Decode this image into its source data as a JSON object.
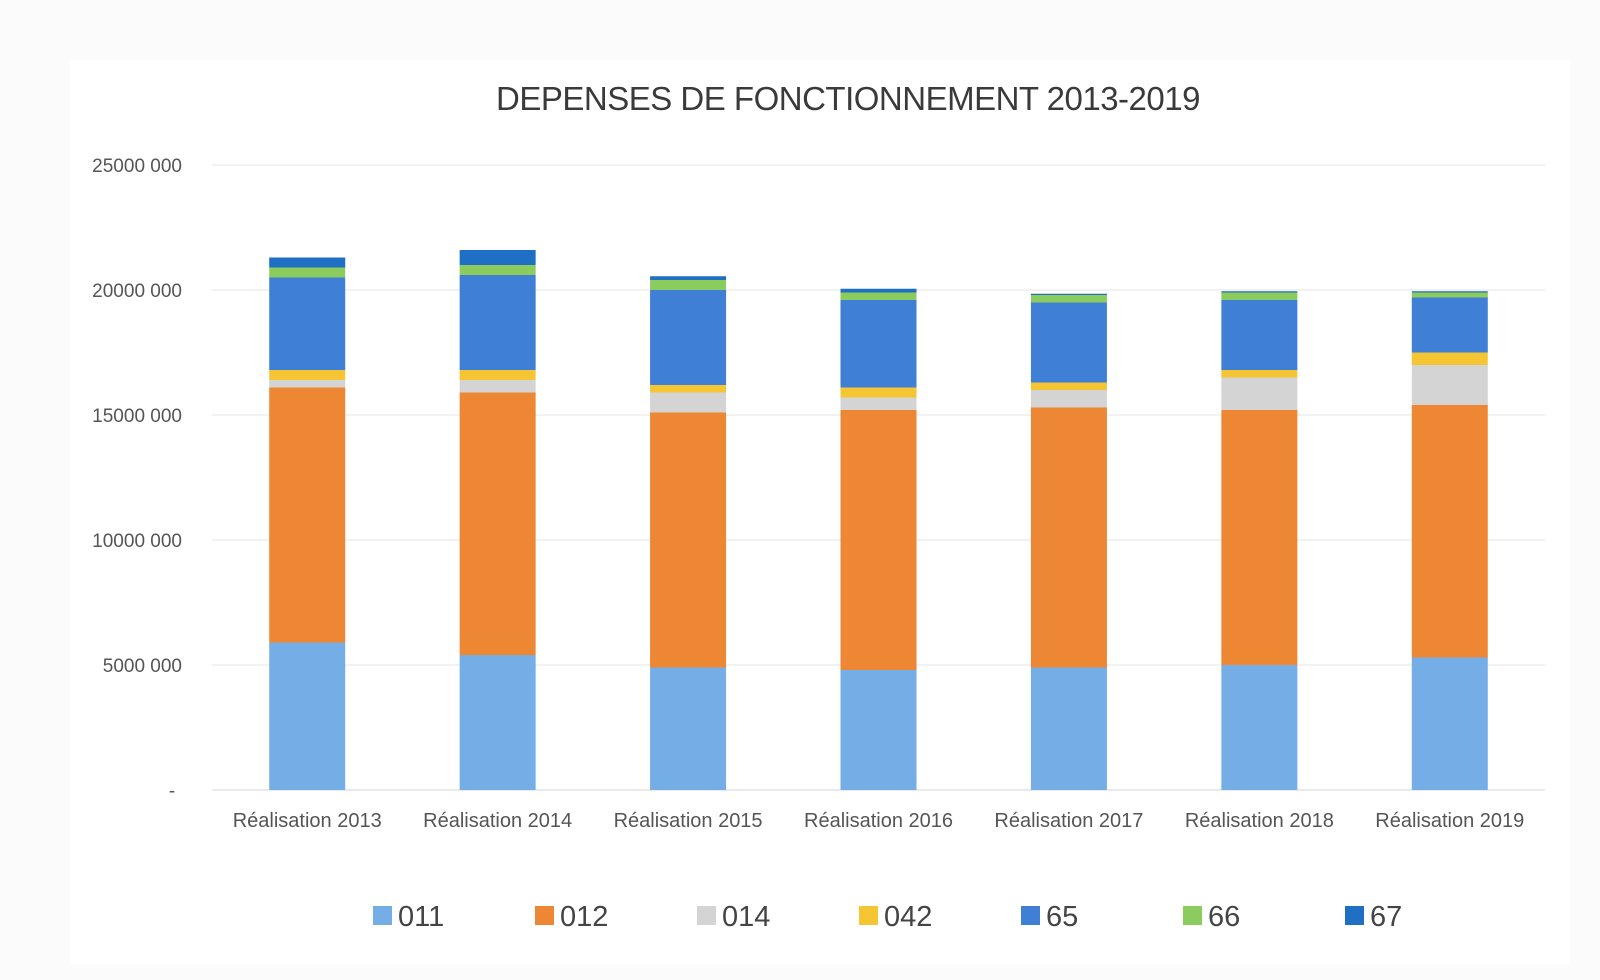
{
  "chart_data": {
    "type": "bar",
    "stacked": true,
    "title": "DEPENSES DE FONCTIONNEMENT 2013-2019",
    "xlabel": "",
    "ylabel": "",
    "ylim": [
      0,
      25000000
    ],
    "y_ticks": [
      {
        "value": 0,
        "label": "-"
      },
      {
        "value": 5000000,
        "label": "5000 000"
      },
      {
        "value": 10000000,
        "label": "10000 000"
      },
      {
        "value": 15000000,
        "label": "15000 000"
      },
      {
        "value": 20000000,
        "label": "20000 000"
      },
      {
        "value": 25000000,
        "label": "25000 000"
      }
    ],
    "grid": true,
    "legend_position": "bottom",
    "categories": [
      "Réalisation 2013",
      "Réalisation 2014",
      "Réalisation 2015",
      "Réalisation 2016",
      "Réalisation 2017",
      "Réalisation 2018",
      "Réalisation 2019"
    ],
    "series": [
      {
        "name": "011",
        "color": "#75aee6",
        "values": [
          5900000,
          5400000,
          4900000,
          4800000,
          4900000,
          5000000,
          5300000
        ]
      },
      {
        "name": "012",
        "color": "#ee8733",
        "values": [
          10200000,
          10500000,
          10200000,
          10400000,
          10400000,
          10200000,
          10100000
        ]
      },
      {
        "name": "014",
        "color": "#d4d4d4",
        "values": [
          300000,
          500000,
          800000,
          500000,
          700000,
          1300000,
          1600000
        ]
      },
      {
        "name": "042",
        "color": "#f6c533",
        "values": [
          400000,
          400000,
          300000,
          400000,
          300000,
          300000,
          500000
        ]
      },
      {
        "name": "65",
        "color": "#3f7fd6",
        "values": [
          3700000,
          3800000,
          3800000,
          3500000,
          3200000,
          2800000,
          2200000
        ]
      },
      {
        "name": "66",
        "color": "#8ccb5e",
        "values": [
          400000,
          400000,
          400000,
          300000,
          300000,
          300000,
          200000
        ]
      },
      {
        "name": "67",
        "color": "#1f6fc4",
        "values": [
          400000,
          600000,
          150000,
          150000,
          50000,
          50000,
          50000
        ]
      }
    ]
  }
}
